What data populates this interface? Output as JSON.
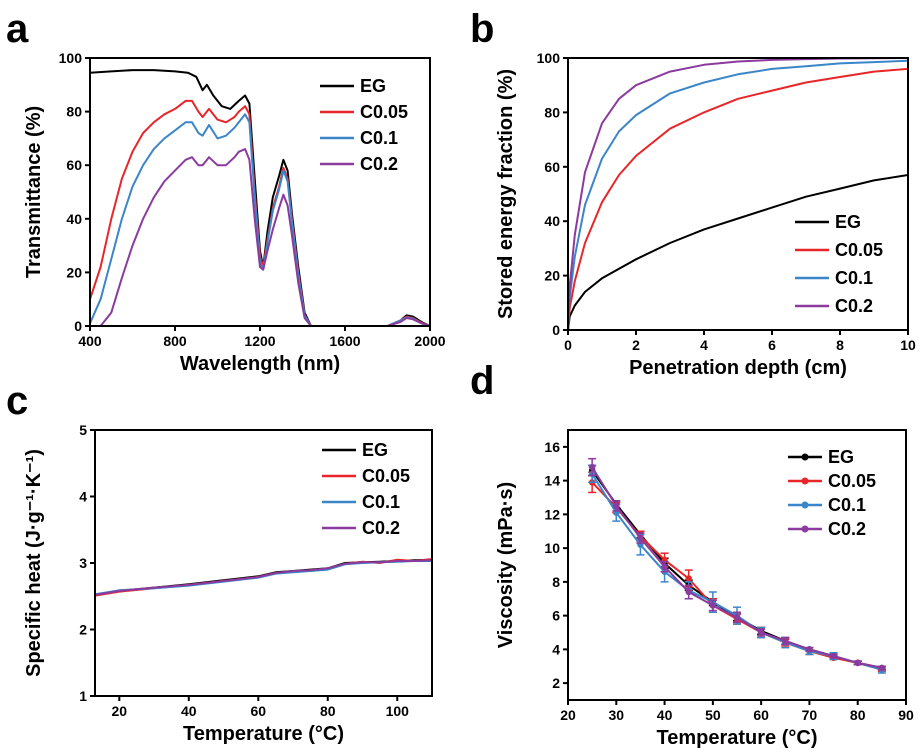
{
  "colors": {
    "EG": "#000000",
    "C0.05": "#e8262a",
    "C0.1": "#3a86c8",
    "C0.2": "#8b3a9e"
  },
  "chart_data": [
    {
      "panel": "a",
      "type": "line",
      "xlabel": "Wavelength (nm)",
      "ylabel": "Transmittance (%)",
      "xlim": [
        400,
        2000
      ],
      "ylim": [
        0,
        100
      ],
      "xticks": [
        "400",
        "800",
        "1200",
        "1600",
        "2000"
      ],
      "yticks": [
        "0",
        "20",
        "40",
        "60",
        "80",
        "100"
      ],
      "legend_position": "top-right",
      "grid": false,
      "series": [
        {
          "name": "EG",
          "x": [
            400,
            500,
            600,
            700,
            800,
            860,
            900,
            930,
            950,
            980,
            1020,
            1060,
            1100,
            1130,
            1150,
            1175,
            1200,
            1215,
            1235,
            1260,
            1290,
            1310,
            1330,
            1350,
            1380,
            1410,
            1440,
            1500,
            1600,
            1700,
            1800,
            1860,
            1890,
            1920,
            1960,
            2000
          ],
          "y": [
            94.5,
            95,
            95.5,
            95.5,
            95,
            94.5,
            93,
            88,
            90,
            86,
            82,
            81,
            84,
            86,
            83,
            55,
            28,
            22,
            35,
            48,
            56,
            62,
            58,
            42,
            22,
            5,
            0,
            0,
            0,
            0,
            0,
            2,
            4,
            3.5,
            1.5,
            0
          ]
        },
        {
          "name": "C0.05",
          "x": [
            400,
            450,
            500,
            550,
            600,
            650,
            700,
            750,
            800,
            850,
            880,
            910,
            930,
            960,
            1000,
            1040,
            1080,
            1100,
            1130,
            1150,
            1175,
            1200,
            1215,
            1235,
            1260,
            1290,
            1310,
            1330,
            1350,
            1380,
            1410,
            1440,
            1500,
            1600,
            1700,
            1800,
            1860,
            1890,
            1920,
            1960,
            2000
          ],
          "y": [
            10,
            22,
            40,
            55,
            65,
            72,
            76,
            79,
            81,
            84,
            84,
            80,
            78,
            81,
            77,
            76,
            78,
            80,
            82,
            79,
            50,
            26,
            22,
            32,
            44,
            52,
            59,
            55,
            40,
            20,
            4,
            0,
            0,
            0,
            0,
            0,
            2,
            3.5,
            3,
            1.2,
            0
          ]
        },
        {
          "name": "C0.1",
          "x": [
            400,
            450,
            500,
            550,
            600,
            650,
            700,
            750,
            800,
            850,
            880,
            910,
            930,
            960,
            1000,
            1040,
            1080,
            1100,
            1130,
            1150,
            1175,
            1200,
            1215,
            1235,
            1260,
            1290,
            1310,
            1330,
            1350,
            1380,
            1410,
            1440,
            1500,
            1600,
            1700,
            1800,
            1860,
            1890,
            1920,
            1960,
            2000
          ],
          "y": [
            1,
            10,
            25,
            40,
            52,
            60,
            66,
            70,
            73,
            76,
            76,
            72,
            71,
            75,
            70,
            71,
            74,
            76,
            79,
            76,
            48,
            24,
            21,
            31,
            43,
            51,
            58,
            54,
            39,
            19,
            4,
            0,
            0,
            0,
            0,
            0,
            2,
            3.2,
            2.8,
            1,
            0
          ]
        },
        {
          "name": "C0.2",
          "x": [
            400,
            450,
            500,
            550,
            600,
            650,
            700,
            750,
            800,
            850,
            880,
            910,
            930,
            960,
            1000,
            1040,
            1080,
            1100,
            1130,
            1150,
            1175,
            1200,
            1215,
            1235,
            1260,
            1290,
            1310,
            1330,
            1350,
            1380,
            1410,
            1440,
            1500,
            1600,
            1700,
            1800,
            1860,
            1890,
            1920,
            1960,
            2000
          ],
          "y": [
            0,
            0,
            5,
            18,
            30,
            40,
            48,
            54,
            58,
            62,
            63,
            60,
            60,
            63,
            60,
            60,
            63,
            65,
            66,
            62,
            40,
            22,
            21,
            28,
            36,
            44,
            49,
            45,
            34,
            16,
            3,
            0,
            0,
            0,
            0,
            0,
            1.5,
            3,
            2.5,
            1,
            0
          ]
        }
      ]
    },
    {
      "panel": "b",
      "type": "line",
      "xlabel": "Penetration depth (cm)",
      "ylabel": "Stored energy fraction (%)",
      "xlim": [
        0,
        10
      ],
      "ylim": [
        0,
        100
      ],
      "xticks": [
        "0",
        "2",
        "4",
        "6",
        "8",
        "10"
      ],
      "yticks": [
        "0",
        "20",
        "40",
        "60",
        "80",
        "100"
      ],
      "legend_position": "bottom-right",
      "grid": false,
      "series": [
        {
          "name": "EG",
          "x": [
            0,
            0.05,
            0.2,
            0.5,
            1,
            2,
            3,
            4,
            5,
            6,
            7,
            8,
            9,
            10
          ],
          "y": [
            0,
            5,
            9,
            14,
            19,
            26,
            32,
            37,
            41,
            45,
            49,
            52,
            55,
            57
          ]
        },
        {
          "name": "C0.05",
          "x": [
            0,
            0.05,
            0.2,
            0.5,
            1,
            1.5,
            2,
            3,
            4,
            5,
            6,
            7,
            8,
            9,
            10
          ],
          "y": [
            0,
            8,
            18,
            32,
            47,
            57,
            64,
            74,
            80,
            85,
            88,
            91,
            93,
            95,
            96
          ]
        },
        {
          "name": "C0.1",
          "x": [
            0,
            0.05,
            0.2,
            0.5,
            1,
            1.5,
            2,
            3,
            4,
            5,
            6,
            7,
            8,
            9,
            10
          ],
          "y": [
            0,
            12,
            27,
            46,
            63,
            73,
            79,
            87,
            91,
            94,
            96,
            97,
            98,
            98.5,
            99
          ]
        },
        {
          "name": "C0.2",
          "x": [
            0,
            0.05,
            0.2,
            0.5,
            1,
            1.5,
            2,
            3,
            4,
            5,
            6,
            7,
            8,
            9,
            10
          ],
          "y": [
            0,
            16,
            35,
            58,
            76,
            85,
            90,
            95,
            97.5,
            98.7,
            99.3,
            99.6,
            99.8,
            99.9,
            100
          ]
        }
      ]
    },
    {
      "panel": "c",
      "type": "line",
      "xlabel": "Temperature (°C)",
      "ylabel": "Specific heat (J·g⁻¹·K⁻¹)",
      "xlim": [
        13,
        110
      ],
      "ylim": [
        1,
        5
      ],
      "xticks": [
        "20",
        "40",
        "60",
        "80",
        "100"
      ],
      "yticks": [
        "1",
        "2",
        "3",
        "4",
        "5"
      ],
      "legend_position": "top-right",
      "grid": false,
      "series": [
        {
          "name": "EG",
          "x": [
            13,
            20,
            30,
            40,
            50,
            60,
            65,
            70,
            75,
            80,
            85,
            90,
            95,
            100,
            105,
            110
          ],
          "y": [
            2.52,
            2.58,
            2.63,
            2.68,
            2.74,
            2.8,
            2.86,
            2.88,
            2.9,
            2.92,
            3.0,
            3.01,
            3.02,
            3.03,
            3.04,
            3.05
          ]
        },
        {
          "name": "C0.05",
          "x": [
            13,
            20,
            30,
            40,
            50,
            60,
            65,
            70,
            75,
            80,
            85,
            90,
            95,
            100,
            105,
            110
          ],
          "y": [
            2.51,
            2.57,
            2.62,
            2.67,
            2.73,
            2.79,
            2.85,
            2.87,
            2.89,
            2.91,
            2.99,
            3.02,
            3.0,
            3.05,
            3.03,
            3.06
          ]
        },
        {
          "name": "C0.1",
          "x": [
            13,
            20,
            30,
            40,
            50,
            60,
            65,
            70,
            75,
            80,
            85,
            90,
            95,
            100,
            105,
            110
          ],
          "y": [
            2.53,
            2.59,
            2.62,
            2.66,
            2.72,
            2.78,
            2.84,
            2.86,
            2.88,
            2.9,
            2.98,
            3.0,
            3.01,
            3.02,
            3.03,
            3.03
          ]
        },
        {
          "name": "C0.2",
          "x": [
            13,
            20,
            30,
            40,
            50,
            60,
            65,
            70,
            75,
            80,
            85,
            90,
            95,
            100,
            105,
            110
          ],
          "y": [
            2.52,
            2.58,
            2.63,
            2.67,
            2.73,
            2.79,
            2.85,
            2.88,
            2.89,
            2.92,
            2.99,
            3.01,
            3.01,
            3.03,
            3.03,
            3.04
          ]
        }
      ]
    },
    {
      "panel": "d",
      "type": "line",
      "xlabel": "Temperature (°C)",
      "ylabel": "Viscosity (mPa·s)",
      "xlim": [
        20,
        90
      ],
      "ylim": [
        1,
        17
      ],
      "xticks": [
        "20",
        "30",
        "40",
        "50",
        "60",
        "70",
        "80",
        "90"
      ],
      "yticks": [
        "2",
        "4",
        "6",
        "8",
        "10",
        "12",
        "14",
        "16"
      ],
      "legend_position": "top-right",
      "grid": false,
      "x": [
        25,
        30,
        35,
        40,
        45,
        50,
        55,
        60,
        65,
        70,
        75,
        80,
        85
      ],
      "series": [
        {
          "name": "EG",
          "y": [
            14.6,
            12.6,
            10.8,
            9.1,
            7.8,
            6.8,
            5.9,
            5.1,
            4.5,
            4.0,
            3.6,
            3.2,
            2.9
          ],
          "err": [
            0.3,
            0.2,
            0.2,
            0.3,
            0.3,
            0.2,
            0.2,
            0.2,
            0.2,
            0.1,
            0.1,
            0.1,
            0.1
          ]
        },
        {
          "name": "C0.05",
          "y": [
            13.9,
            12.4,
            10.7,
            9.3,
            8.2,
            6.6,
            5.8,
            5.0,
            4.4,
            3.9,
            3.5,
            3.2,
            2.8
          ],
          "err": [
            0.6,
            0.3,
            0.3,
            0.4,
            0.5,
            0.4,
            0.3,
            0.3,
            0.2,
            0.2,
            0.1,
            0.1,
            0.1
          ]
        },
        {
          "name": "C0.1",
          "y": [
            14.4,
            12.1,
            10.2,
            8.6,
            7.5,
            6.8,
            6.0,
            5.0,
            4.4,
            3.9,
            3.6,
            3.2,
            2.8
          ],
          "err": [
            0.5,
            0.5,
            0.6,
            0.6,
            0.5,
            0.6,
            0.5,
            0.3,
            0.3,
            0.2,
            0.2,
            0.1,
            0.2
          ]
        },
        {
          "name": "C0.2",
          "y": [
            14.8,
            12.5,
            10.6,
            8.9,
            7.4,
            6.6,
            5.9,
            5.0,
            4.5,
            4.0,
            3.6,
            3.2,
            2.9
          ],
          "err": [
            0.5,
            0.3,
            0.3,
            0.3,
            0.4,
            0.3,
            0.3,
            0.2,
            0.2,
            0.1,
            0.1,
            0.1,
            0.1
          ]
        }
      ]
    }
  ]
}
